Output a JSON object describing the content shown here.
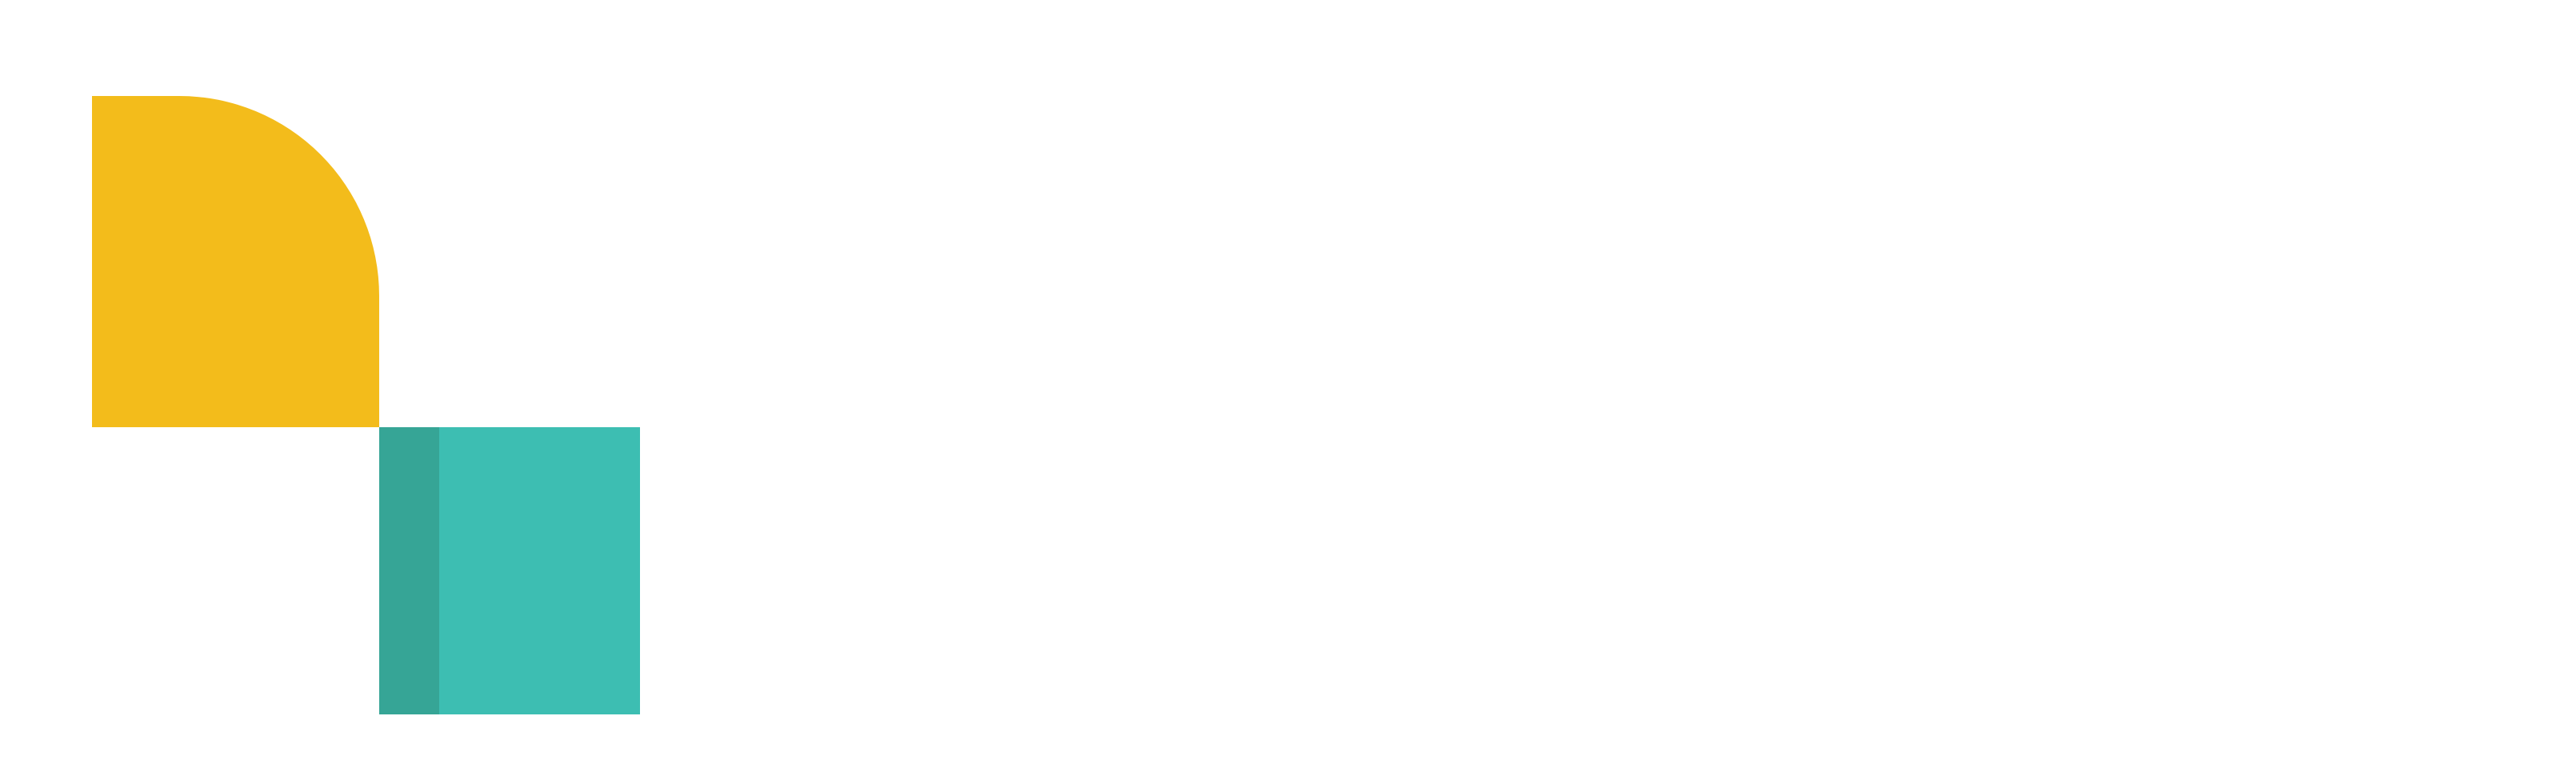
{
  "logo": {
    "name": "geometric-logo-mark",
    "colors": {
      "yellow": "#F3BC1B",
      "teal": "#3DBEB2",
      "teal_dark": "#36A596",
      "background": "#FFFFFF"
    }
  }
}
